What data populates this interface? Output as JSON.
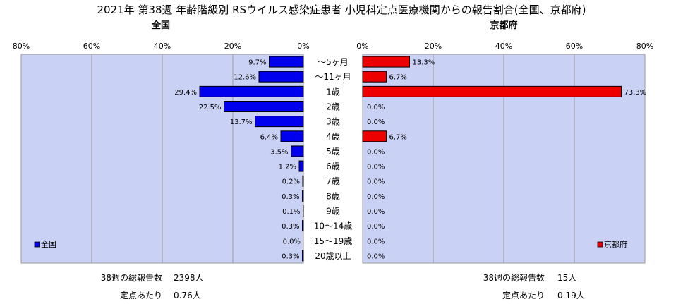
{
  "title": "2021年 第38週 年齢階級別 RSウイルス感染症患者 小児科定点医療機関からの報告割合(全国、京都府)",
  "chart_data": {
    "type": "bar",
    "orientation": "horizontal-butterfly",
    "categories": [
      "～5ヶ月",
      "～11ヶ月",
      "1歳",
      "2歳",
      "3歳",
      "4歳",
      "5歳",
      "6歳",
      "7歳",
      "8歳",
      "9歳",
      "10～14歳",
      "15～19歳",
      "20歳以上"
    ],
    "xlim": [
      0,
      80
    ],
    "ticks": [
      "80%",
      "60%",
      "40%",
      "20%",
      "0%"
    ],
    "ticks_right": [
      "0%",
      "20%",
      "40%",
      "60%",
      "80%"
    ],
    "grid": true,
    "series": [
      {
        "name": "全国",
        "side": "left",
        "color": "#0000ee",
        "values": [
          9.7,
          12.6,
          29.4,
          22.5,
          13.7,
          6.4,
          3.5,
          1.2,
          0.2,
          0.3,
          0.1,
          0.3,
          0.0,
          0.3
        ],
        "labels": [
          "9.7%",
          "12.6%",
          "29.4%",
          "22.5%",
          "13.7%",
          "6.4%",
          "3.5%",
          "1.2%",
          "0.2%",
          "0.3%",
          "0.1%",
          "0.3%",
          "0.0%",
          "0.3%"
        ]
      },
      {
        "name": "京都府",
        "side": "right",
        "color": "#ee0000",
        "values": [
          13.3,
          6.7,
          73.3,
          0.0,
          0.0,
          6.7,
          0.0,
          0.0,
          0.0,
          0.0,
          0.0,
          0.0,
          0.0,
          0.0
        ],
        "labels": [
          "13.3%",
          "6.7%",
          "73.3%",
          "0.0%",
          "0.0%",
          "6.7%",
          "0.0%",
          "0.0%",
          "0.0%",
          "0.0%",
          "0.0%",
          "0.0%",
          "0.0%",
          "0.0%"
        ]
      }
    ],
    "plot_bg": "#c9d1f5",
    "legend_position": "bottom-left / bottom-right"
  },
  "panels": {
    "left_title": "全国",
    "right_title": "京都府",
    "legend_left": "全国",
    "legend_right": "京都府"
  },
  "footer": {
    "left": {
      "total_label": "38週の総報告数",
      "total_value": "2398人",
      "per_label": "定点あたり",
      "per_value": "0.76人"
    },
    "right": {
      "total_label": "38週の総報告数",
      "total_value": "15人",
      "per_label": "定点あたり",
      "per_value": "0.19人"
    }
  }
}
